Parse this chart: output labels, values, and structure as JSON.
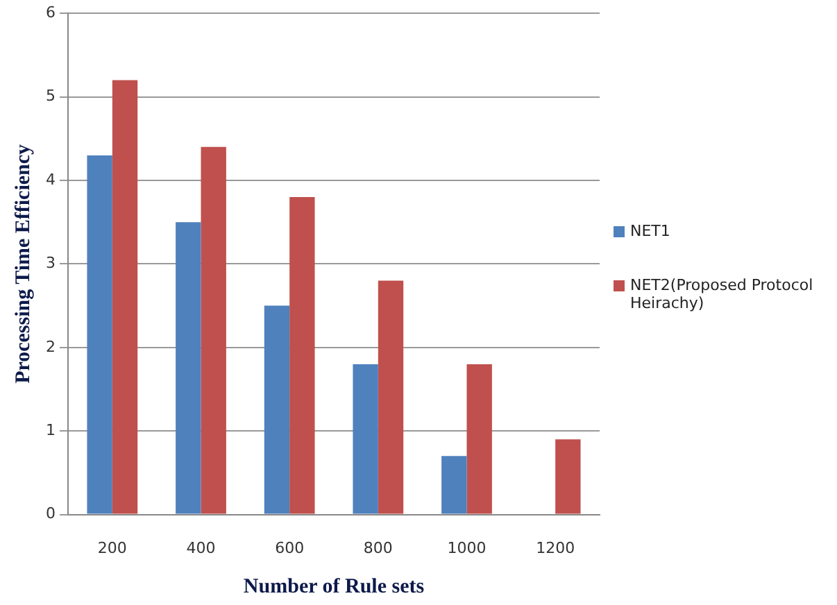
{
  "chart_data": {
    "type": "bar",
    "xlabel": "Number of Rule sets",
    "ylabel": "Processing Time Efficiency",
    "categories": [
      "200",
      "400",
      "600",
      "800",
      "1000",
      "1200"
    ],
    "series": [
      {
        "name": "NET1",
        "color": "#4f81bd",
        "values": [
          4.3,
          3.5,
          2.5,
          1.8,
          0.7,
          null
        ]
      },
      {
        "name": "NET2(Proposed Protocol Heirachy)",
        "color": "#c0504d",
        "values": [
          5.2,
          4.4,
          3.8,
          2.8,
          1.8,
          0.9
        ]
      }
    ],
    "ylim": [
      0,
      6
    ],
    "yticks": [
      0,
      1,
      2,
      3,
      4,
      5,
      6
    ],
    "grid": "y",
    "legend": "right"
  }
}
